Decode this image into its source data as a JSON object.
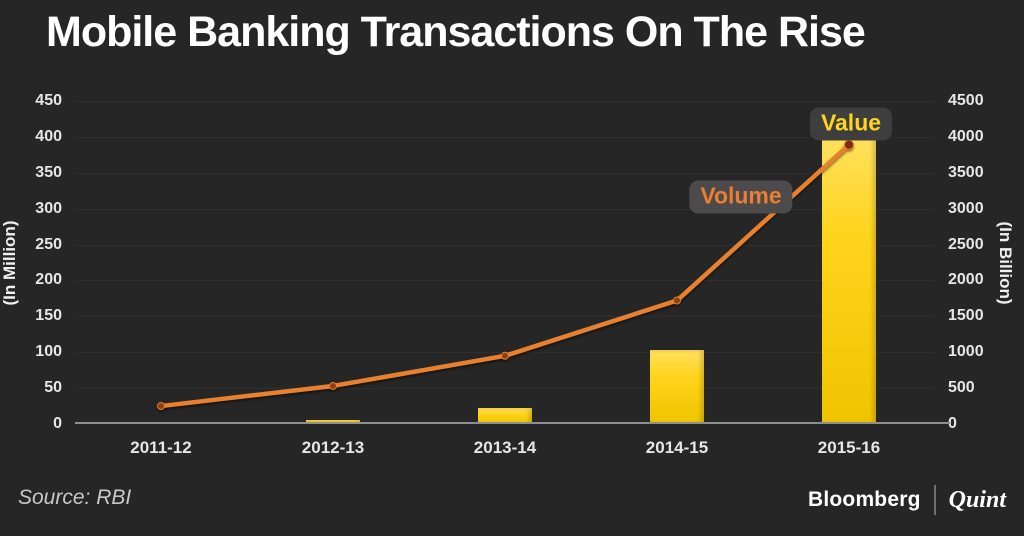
{
  "title": "Mobile Banking Transactions On The Rise",
  "chart_data": {
    "type": "bar+line combo",
    "categories": [
      "2011-12",
      "2012-13",
      "2013-14",
      "2014-15",
      "2015-16"
    ],
    "series": [
      {
        "name": "Value",
        "type": "bar",
        "axis": "right",
        "color": "#ffd41c",
        "values": [
          18,
          60,
          224,
          1035,
          4040
        ]
      },
      {
        "name": "Volume",
        "type": "line",
        "axis": "left",
        "color": "#e8802e",
        "values": [
          25,
          53,
          95,
          172,
          389
        ]
      }
    ],
    "left_axis": {
      "label": "(In Million)",
      "min": 0,
      "max": 450,
      "step": 50,
      "ticks": [
        0,
        50,
        100,
        150,
        200,
        250,
        300,
        350,
        400,
        450
      ]
    },
    "right_axis": {
      "label": "(In Billion)",
      "min": 0,
      "max": 4500,
      "step": 500,
      "ticks": [
        0,
        500,
        1000,
        1500,
        2000,
        2500,
        3000,
        3500,
        4000,
        4500
      ]
    },
    "grid": "horizontal",
    "legend_position": "inline annotations near 2015-16",
    "annotations": {
      "value": "Value",
      "volume": "Volume"
    }
  },
  "footer": {
    "source": "Source: RBI",
    "brand_primary": "Bloomberg",
    "brand_secondary": "Quint"
  },
  "colors": {
    "background": "#262626",
    "bar_yellow": "#ffd41c",
    "line_orange": "#e8802e",
    "value_label": "#ffd41e",
    "volume_label": "#ed7d31",
    "title_text": "#ffffff",
    "tick_text": "#e6e6e6"
  }
}
